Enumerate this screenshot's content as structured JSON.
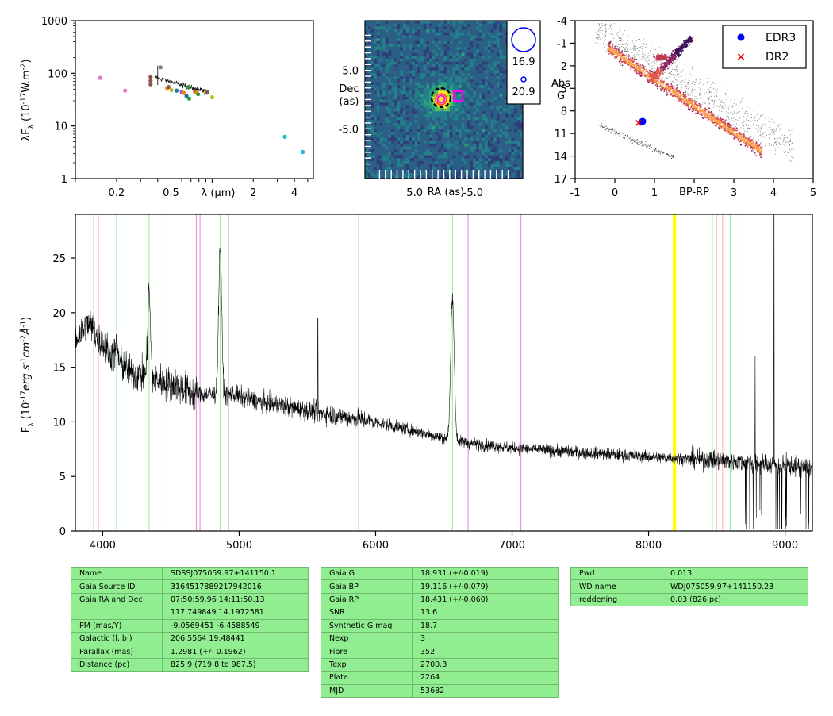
{
  "chart_data": [
    {
      "type": "scatter",
      "panel": "sed",
      "ylabel": "λF_λ (10^-17 W.m^-2)",
      "xlabel": "λ (μm)",
      "xscale": "log",
      "yscale": "log",
      "xlim": [
        0.1,
        5.5
      ],
      "ylim": [
        1,
        1000
      ],
      "xticks": [
        "0.2",
        "0.5",
        "1",
        "2",
        "4"
      ],
      "yticks": [
        "1",
        "10",
        "100",
        "1000"
      ],
      "points": [
        {
          "x": 0.152,
          "y": 82,
          "color": "#e377c2"
        },
        {
          "x": 0.231,
          "y": 47,
          "color": "#e377c2"
        },
        {
          "x": 0.355,
          "y": 85,
          "color": "#8c564b"
        },
        {
          "x": 0.355,
          "y": 72,
          "color": "#8c564b"
        },
        {
          "x": 0.355,
          "y": 62,
          "color": "#8c564b"
        },
        {
          "x": 0.42,
          "y": 130,
          "color": "#7f7f7f"
        },
        {
          "x": 0.469,
          "y": 52,
          "color": "#ff7f0e"
        },
        {
          "x": 0.48,
          "y": 55,
          "color": "#8c564b"
        },
        {
          "x": 0.505,
          "y": 48,
          "color": "#bcbd22"
        },
        {
          "x": 0.55,
          "y": 47,
          "color": "#1f77b4"
        },
        {
          "x": 0.6,
          "y": 44,
          "color": "#9467bd"
        },
        {
          "x": 0.625,
          "y": 42,
          "color": "#ff7f0e"
        },
        {
          "x": 0.65,
          "y": 37,
          "color": "#1f77b4"
        },
        {
          "x": 0.67,
          "y": 55,
          "color": "#2ca02c"
        },
        {
          "x": 0.68,
          "y": 33,
          "color": "#2ca02c"
        },
        {
          "x": 0.75,
          "y": 45,
          "color": "#8c564b"
        },
        {
          "x": 0.77,
          "y": 43,
          "color": "#ff7f0e"
        },
        {
          "x": 0.79,
          "y": 40,
          "color": "#2ca02c"
        },
        {
          "x": 0.9,
          "y": 45,
          "color": "#bcbd22"
        },
        {
          "x": 0.92,
          "y": 44,
          "color": "#8c564b"
        },
        {
          "x": 1.0,
          "y": 35,
          "color": "#bcbd22"
        },
        {
          "x": 3.4,
          "y": 6.2,
          "color": "#17becf"
        },
        {
          "x": 4.6,
          "y": 3.2,
          "color": "#17becf"
        }
      ]
    },
    {
      "type": "heatmap",
      "panel": "image",
      "xlabel": "RA (as)",
      "ylabel": "Dec (as)",
      "xticks": [
        "5.0",
        "-5.0"
      ],
      "yticks": [
        "5.0",
        "-5.0"
      ],
      "legend": [
        {
          "label": "16.9",
          "marker": "large-circle"
        },
        {
          "label": "20.9",
          "marker": "small-circle"
        }
      ]
    },
    {
      "type": "scatter",
      "panel": "hr-diagram",
      "xlabel": "BP-RP",
      "ylabel": "Abs G",
      "xlim": [
        -1,
        5
      ],
      "ylim": [
        17,
        -4
      ],
      "xticks": [
        "-1",
        "0",
        "1",
        "3",
        "4",
        "5"
      ],
      "yticks": [
        "-4",
        "-1",
        "2",
        "5",
        "8",
        "11",
        "14",
        "17"
      ],
      "series": [
        {
          "name": "EDR3",
          "x": [
            0.7
          ],
          "y": [
            9.4
          ],
          "color": "#0000ff",
          "marker": "circle"
        },
        {
          "name": "DR2",
          "x": [
            0.6
          ],
          "y": [
            9.5
          ],
          "color": "#ff0000",
          "marker": "x"
        }
      ],
      "legend": "top-right"
    },
    {
      "type": "line",
      "panel": "spectrum",
      "ylabel": "F_λ (10^-17 erg s^-1 cm^-2 Å^-1)",
      "xlim": [
        3800,
        9200
      ],
      "ylim": [
        0,
        29
      ],
      "xticks": [
        "4000",
        "5000",
        "6000",
        "7000",
        "8000",
        "9000"
      ],
      "yticks": [
        "0",
        "5",
        "10",
        "15",
        "20",
        "25"
      ],
      "continuum": [
        {
          "x": 3800,
          "y": 17.5
        },
        {
          "x": 3900,
          "y": 19
        },
        {
          "x": 4000,
          "y": 17
        },
        {
          "x": 4200,
          "y": 14.5
        },
        {
          "x": 4500,
          "y": 13.5
        },
        {
          "x": 4700,
          "y": 12.5
        },
        {
          "x": 4950,
          "y": 12.5
        },
        {
          "x": 5200,
          "y": 11.7
        },
        {
          "x": 5600,
          "y": 10.8
        },
        {
          "x": 6000,
          "y": 10
        },
        {
          "x": 6400,
          "y": 8.8
        },
        {
          "x": 6700,
          "y": 8
        },
        {
          "x": 7000,
          "y": 7.6
        },
        {
          "x": 7500,
          "y": 7.2
        },
        {
          "x": 8000,
          "y": 6.8
        },
        {
          "x": 8500,
          "y": 6.5
        },
        {
          "x": 9200,
          "y": 5.8
        }
      ],
      "emission": [
        {
          "x": 4102,
          "y": 17,
          "w": 12
        },
        {
          "x": 4340,
          "y": 22,
          "w": 14
        },
        {
          "x": 4861,
          "y": 26,
          "w": 16
        },
        {
          "x": 6563,
          "y": 21.5,
          "w": 18
        }
      ],
      "spikes": [
        {
          "x": 5577,
          "y": 19.5
        },
        {
          "x": 8920,
          "y": 29
        },
        {
          "x": 8780,
          "y": 16
        }
      ],
      "vlines": [
        {
          "x": 3934,
          "color": "#ffb0b0"
        },
        {
          "x": 3969,
          "color": "#ffb0b0"
        },
        {
          "x": 4102,
          "color": "#90ee90"
        },
        {
          "x": 4340,
          "color": "#90ee90"
        },
        {
          "x": 4471,
          "color": "#dd88dd"
        },
        {
          "x": 4686,
          "color": "#dd88dd"
        },
        {
          "x": 4713,
          "color": "#dd88dd"
        },
        {
          "x": 4861,
          "color": "#90ee90"
        },
        {
          "x": 4922,
          "color": "#dd88dd"
        },
        {
          "x": 5876,
          "color": "#dd88dd"
        },
        {
          "x": 6563,
          "color": "#90ee90"
        },
        {
          "x": 6678,
          "color": "#dd88dd"
        },
        {
          "x": 7065,
          "color": "#dd88dd"
        },
        {
          "x": 8498,
          "color": "#ffb0b0"
        },
        {
          "x": 8542,
          "color": "#ffb0b0"
        },
        {
          "x": 8662,
          "color": "#ffb0b0"
        },
        {
          "x": 8467,
          "color": "#90ee90"
        },
        {
          "x": 8598,
          "color": "#90ee90"
        }
      ],
      "highlight": [
        {
          "x": 8183,
          "color": "#ffff00"
        },
        {
          "x": 8195,
          "color": "#ffff00"
        }
      ]
    }
  ],
  "tables": [
    {
      "rows": [
        [
          "Name",
          "SDSSJ075059.97+141150.1"
        ],
        [
          "Gaia Source ID",
          "3164517889217942016"
        ],
        [
          "Gaia RA and Dec",
          "07:50:59.96    14:11:50.13"
        ],
        [
          "",
          "117.749849    14.1972581"
        ],
        [
          "PM (mas/Y)",
          "-9.0569451    -6.4588549"
        ],
        [
          "Galactic (l, b )",
          "206.5564    19.48441"
        ],
        [
          "Parallax (mas)",
          "1.2981 (+/- 0.1962)"
        ],
        [
          "Distance (pc)",
          "825.9 (719.8 to 987.5)"
        ]
      ]
    },
    {
      "rows": [
        [
          "Gaia G",
          "18.931 (+/-0.019)"
        ],
        [
          "Gaia BP",
          "19.116 (+/-0.079)"
        ],
        [
          "Gaia RP",
          "18.431 (+/-0.060)"
        ],
        [
          "SNR",
          "13.6"
        ],
        [
          "Synthetic G mag",
          "18.7"
        ],
        [
          "Nexp",
          "3"
        ],
        [
          "Fibre",
          "352"
        ],
        [
          "Texp",
          "2700.3"
        ],
        [
          "Plate",
          "2264"
        ],
        [
          "MJD",
          "53682"
        ]
      ]
    },
    {
      "rows": [
        [
          "Pwd",
          "0.013"
        ],
        [
          "WD name",
          "WDJ075059.97+141150.23"
        ],
        [
          "reddening",
          "0.03 (826 pc)"
        ]
      ]
    }
  ]
}
